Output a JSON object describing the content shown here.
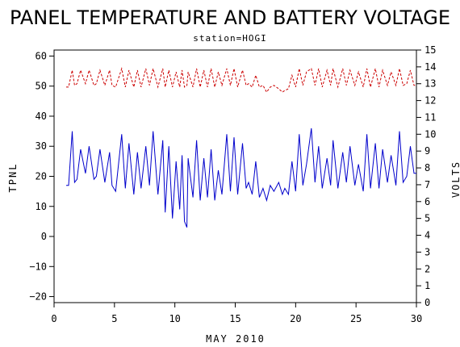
{
  "chart_data": {
    "type": "line",
    "title": "PANEL TEMPERATURE AND BATTERY VOLTAGE",
    "subtitle": "station=HOGI",
    "xlabel": "MAY 2010",
    "ylabel_left": "TPNL",
    "ylabel_right": "VOLTS",
    "xlim": [
      0,
      30
    ],
    "ylim_left": [
      -22,
      62
    ],
    "ylim_right": [
      0,
      15
    ],
    "x_ticks": [
      0,
      5,
      10,
      15,
      20,
      25,
      30
    ],
    "y_ticks_left": [
      -20,
      -10,
      0,
      10,
      20,
      30,
      40,
      50,
      60
    ],
    "y_ticks_right": [
      0,
      1,
      2,
      3,
      4,
      5,
      6,
      7,
      8,
      9,
      10,
      11,
      12,
      13,
      14,
      15
    ],
    "grid": false,
    "series": [
      {
        "name": "TPNL",
        "axis": "left",
        "color": "#0000cc",
        "style": "solid",
        "x": [
          1.0,
          1.2,
          1.5,
          1.7,
          1.9,
          2.2,
          2.6,
          2.9,
          3.3,
          3.5,
          3.8,
          4.2,
          4.6,
          4.8,
          5.1,
          5.6,
          5.9,
          6.2,
          6.6,
          6.9,
          7.2,
          7.6,
          7.9,
          8.2,
          8.6,
          9.0,
          9.2,
          9.5,
          9.8,
          10.1,
          10.4,
          10.6,
          10.8,
          11.0,
          11.1,
          11.5,
          11.8,
          12.1,
          12.4,
          12.7,
          13.0,
          13.3,
          13.6,
          13.9,
          14.3,
          14.6,
          14.9,
          15.2,
          15.6,
          15.9,
          16.1,
          16.4,
          16.7,
          17.0,
          17.3,
          17.6,
          17.9,
          18.2,
          18.6,
          18.9,
          19.1,
          19.4,
          19.7,
          20.0,
          20.3,
          20.6,
          20.9,
          21.3,
          21.6,
          21.9,
          22.2,
          22.6,
          22.9,
          23.1,
          23.5,
          23.9,
          24.2,
          24.5,
          24.9,
          25.2,
          25.6,
          25.9,
          26.2,
          26.6,
          26.9,
          27.2,
          27.6,
          27.9,
          28.3,
          28.6,
          28.9,
          29.2,
          29.5,
          29.8,
          30.0
        ],
        "y": [
          17,
          17,
          35,
          18,
          19,
          29,
          21,
          30,
          19,
          20,
          29,
          18,
          28,
          17,
          15,
          34,
          16,
          31,
          14,
          28,
          16,
          30,
          17,
          35,
          14,
          32,
          8,
          30,
          6,
          25,
          9,
          27,
          5,
          3,
          26,
          13,
          32,
          12,
          26,
          13,
          29,
          12,
          22,
          14,
          34,
          15,
          33,
          14,
          31,
          16,
          18,
          14,
          25,
          13,
          16,
          12,
          17,
          15,
          18,
          14,
          16,
          14,
          25,
          15,
          34,
          17,
          24,
          36,
          18,
          30,
          16,
          26,
          17,
          32,
          16,
          28,
          18,
          30,
          17,
          24,
          15,
          34,
          16,
          31,
          16,
          29,
          18,
          27,
          17,
          35,
          18,
          20,
          30,
          21,
          21
        ]
      },
      {
        "name": "VOLTS",
        "axis": "right",
        "color": "#cc0000",
        "style": "dashed",
        "x": [
          1.0,
          1.2,
          1.5,
          1.7,
          1.9,
          2.2,
          2.6,
          2.9,
          3.3,
          3.5,
          3.8,
          4.2,
          4.6,
          4.8,
          5.1,
          5.6,
          5.9,
          6.2,
          6.6,
          6.9,
          7.2,
          7.6,
          7.9,
          8.2,
          8.6,
          9.0,
          9.2,
          9.5,
          9.8,
          10.1,
          10.4,
          10.6,
          10.8,
          11.0,
          11.1,
          11.5,
          11.8,
          12.1,
          12.4,
          12.7,
          13.0,
          13.3,
          13.6,
          13.9,
          14.3,
          14.6,
          14.9,
          15.2,
          15.6,
          15.9,
          16.1,
          16.4,
          16.7,
          17.0,
          17.3,
          17.6,
          17.9,
          18.2,
          18.6,
          18.9,
          19.1,
          19.4,
          19.7,
          20.0,
          20.3,
          20.6,
          20.9,
          21.3,
          21.6,
          21.9,
          22.2,
          22.6,
          22.9,
          23.1,
          23.5,
          23.9,
          24.2,
          24.5,
          24.9,
          25.2,
          25.6,
          25.9,
          26.2,
          26.6,
          26.9,
          27.2,
          27.6,
          27.9,
          28.3,
          28.6,
          28.9,
          29.2,
          29.5,
          29.8,
          30.0
        ],
        "y": [
          12.8,
          12.8,
          13.8,
          12.9,
          13.0,
          13.8,
          13.0,
          13.8,
          12.9,
          13.0,
          13.8,
          12.9,
          13.8,
          12.9,
          12.8,
          13.9,
          12.8,
          13.8,
          12.8,
          13.8,
          12.8,
          13.9,
          12.9,
          13.9,
          12.8,
          13.9,
          12.8,
          13.8,
          12.8,
          13.7,
          12.8,
          13.8,
          12.8,
          12.9,
          13.7,
          12.8,
          13.9,
          12.8,
          13.8,
          12.8,
          13.9,
          12.8,
          13.7,
          12.9,
          13.9,
          12.9,
          13.9,
          12.8,
          13.8,
          12.9,
          13.0,
          12.8,
          13.5,
          12.8,
          12.9,
          12.5,
          12.8,
          12.9,
          12.7,
          12.5,
          12.6,
          12.7,
          13.5,
          12.8,
          13.9,
          12.9,
          13.7,
          13.9,
          12.9,
          13.9,
          12.8,
          13.8,
          12.9,
          13.9,
          12.8,
          13.9,
          12.9,
          13.8,
          12.9,
          13.7,
          12.8,
          13.9,
          12.8,
          13.9,
          12.8,
          13.8,
          12.9,
          13.7,
          12.9,
          13.9,
          12.9,
          13.0,
          13.8,
          12.9,
          12.9
        ]
      }
    ]
  }
}
